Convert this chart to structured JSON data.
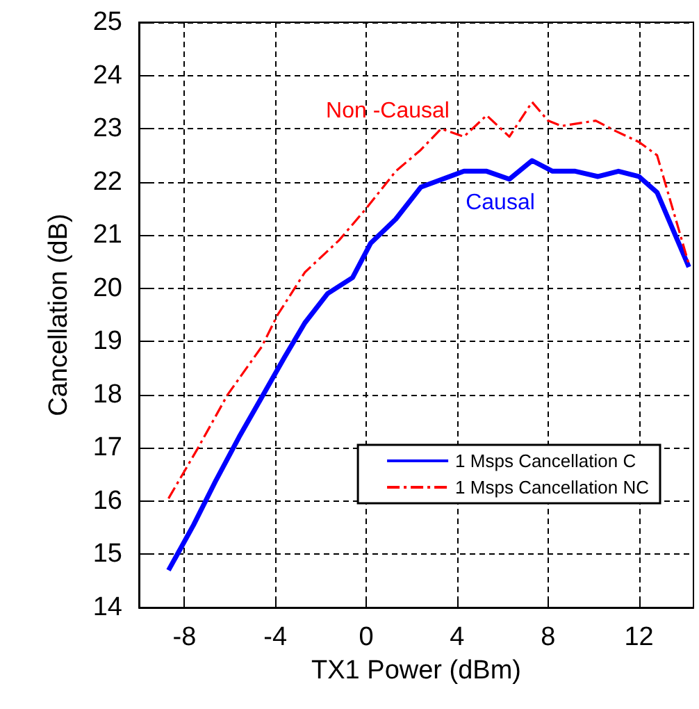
{
  "chart_data": {
    "type": "line",
    "xlabel": "TX1 Power (dBm)",
    "ylabel": "Cancellation (dB)",
    "xlim": [
      -10,
      14.4
    ],
    "xticks": [
      -8,
      -4,
      0,
      4,
      8,
      12
    ],
    "ylim": [
      14,
      25
    ],
    "yticks": [
      14,
      15,
      16,
      17,
      18,
      19,
      20,
      21,
      22,
      23,
      24,
      25
    ],
    "grid": true,
    "legend": "bottom right",
    "marker": "none",
    "series": [
      {
        "name": "1 Msps Cancellation C",
        "color": "#0000ff",
        "line_style": "solid",
        "x": [
          -8.7,
          -7.6,
          -6.6,
          -5.6,
          -4.6,
          -3.6,
          -2.7,
          -1.7,
          -0.6,
          0.2,
          1.3,
          2.4,
          4.3,
          5.3,
          6.3,
          7.3,
          8.2,
          9.2,
          10.2,
          11.1,
          12.0,
          12.8,
          14.2
        ],
        "values": [
          14.7,
          15.55,
          16.4,
          17.2,
          17.95,
          18.7,
          19.35,
          19.9,
          20.2,
          20.85,
          21.3,
          21.9,
          22.2,
          22.2,
          22.05,
          22.4,
          22.2,
          22.2,
          22.1,
          22.2,
          22.1,
          21.8,
          20.4
        ]
      },
      {
        "name": "1 Msps Cancellation NC",
        "color": "#ff0000",
        "line_style": "dashed",
        "x": [
          -8.7,
          -7.4,
          -6.1,
          -4.6,
          -3.9,
          -2.7,
          -1.2,
          0.0,
          1.3,
          2.4,
          3.3,
          4.3,
          5.3,
          6.3,
          7.3,
          8.0,
          8.6,
          10.1,
          11.0,
          12.0,
          12.8,
          14.2
        ],
        "values": [
          16.05,
          17.0,
          18.0,
          18.9,
          19.5,
          20.3,
          20.9,
          21.5,
          22.2,
          22.6,
          23.0,
          22.85,
          23.25,
          22.85,
          23.5,
          23.15,
          23.05,
          23.15,
          22.95,
          22.75,
          22.5,
          20.45
        ]
      }
    ],
    "annotations": [
      "Non -Causal",
      "Causal"
    ]
  }
}
